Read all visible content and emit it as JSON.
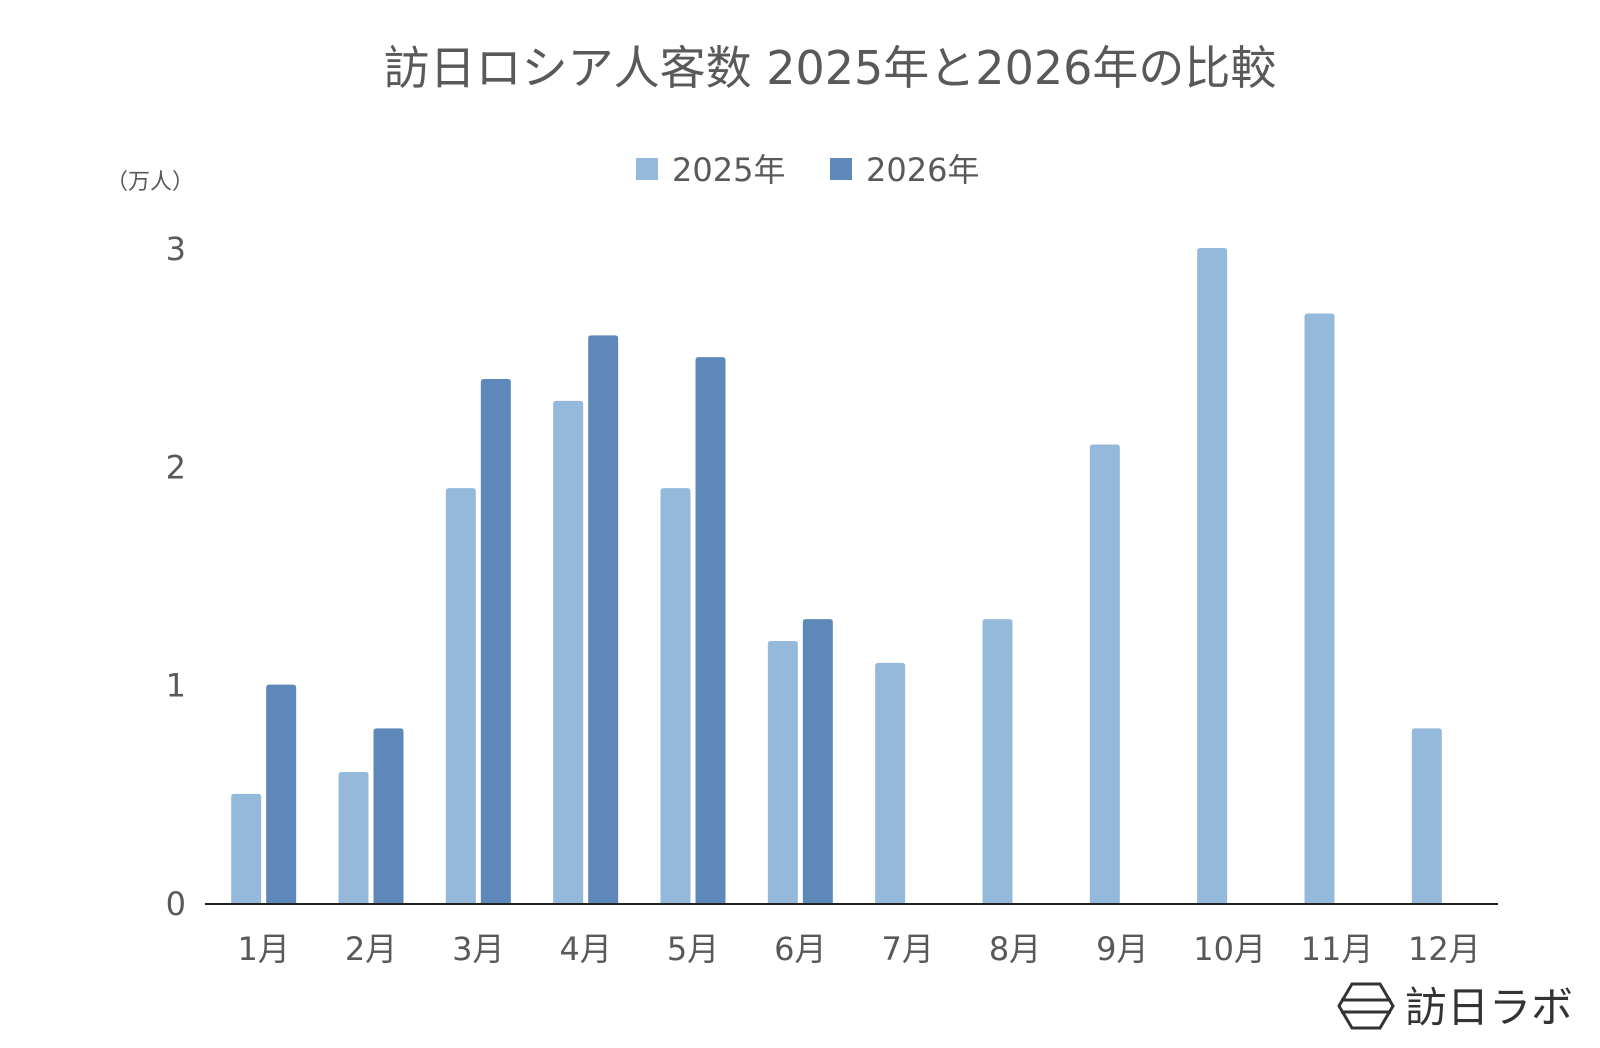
{
  "colors": {
    "series_2025": "#95b9db",
    "series_2026": "#5e88b9",
    "axis": "#222222",
    "text": "#595959"
  },
  "chart_data": {
    "type": "bar",
    "title": "訪日ロシア人客数 2025年と2026年の比較",
    "ylabel": "（万人）",
    "xlabel": "",
    "categories": [
      "1月",
      "2月",
      "3月",
      "4月",
      "5月",
      "6月",
      "7月",
      "8月",
      "9月",
      "10月",
      "11月",
      "12月"
    ],
    "series": [
      {
        "name": "2025年",
        "values": [
          0.5,
          0.6,
          1.9,
          2.3,
          1.9,
          1.2,
          1.1,
          1.3,
          2.1,
          3.0,
          2.7,
          0.8
        ]
      },
      {
        "name": "2026年",
        "values": [
          1.0,
          0.8,
          2.4,
          2.6,
          2.5,
          1.3,
          null,
          null,
          null,
          null,
          null,
          null
        ]
      }
    ],
    "yticks": [
      0,
      1,
      2,
      3
    ],
    "ylim": [
      0,
      3
    ],
    "grid": false,
    "legend_position": "top-center"
  },
  "logo": {
    "text": "訪日ラボ",
    "icon": "hexagon-logo-icon"
  }
}
